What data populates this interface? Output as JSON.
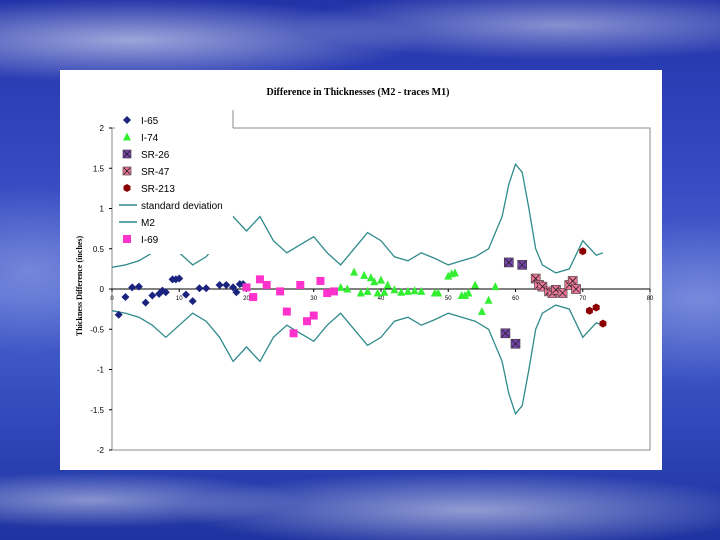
{
  "chart_data": {
    "type": "scatter",
    "title": "Difference in Thicknesses (M2 - traces M1)",
    "ylabel": "Thickness Difference (inches)",
    "xlabel": "",
    "xlim": [
      0,
      80
    ],
    "ylim": [
      -2,
      2
    ],
    "y_ticks": [
      "2",
      "1.5",
      "1",
      "0.5",
      "0",
      "-0.5",
      "-1",
      "-1.5",
      "-2"
    ],
    "x_ticks": [
      "0",
      "10",
      "20",
      "30",
      "40",
      "50",
      "60",
      "70",
      "80"
    ],
    "grid": false,
    "legend_position": "top-left",
    "series": [
      {
        "name": "I-65",
        "marker": "diamond",
        "color": "#1a237e",
        "points": [
          [
            1,
            -0.32
          ],
          [
            2,
            -0.1
          ],
          [
            3,
            0.02
          ],
          [
            4,
            0.03
          ],
          [
            5,
            -0.17
          ],
          [
            6,
            -0.08
          ],
          [
            7,
            -0.06
          ],
          [
            7.5,
            -0.02
          ],
          [
            8,
            -0.04
          ],
          [
            9,
            0.12
          ],
          [
            9.5,
            0.12
          ],
          [
            10,
            0.13
          ],
          [
            11,
            -0.07
          ],
          [
            12,
            -0.15
          ],
          [
            13,
            0.01
          ],
          [
            14,
            0.01
          ],
          [
            16,
            0.05
          ],
          [
            17,
            0.05
          ],
          [
            18,
            0.02
          ],
          [
            18.5,
            -0.04
          ],
          [
            19,
            0.06
          ],
          [
            19.5,
            0.06
          ]
        ]
      },
      {
        "name": "I-74",
        "marker": "triangle",
        "color": "#33ee33",
        "points": [
          [
            34,
            0.02
          ],
          [
            35,
            0.0
          ],
          [
            36,
            0.21
          ],
          [
            37,
            -0.05
          ],
          [
            37.5,
            0.17
          ],
          [
            38,
            -0.03
          ],
          [
            38.5,
            0.14
          ],
          [
            39,
            0.09
          ],
          [
            39.5,
            -0.05
          ],
          [
            40,
            0.11
          ],
          [
            40.5,
            -0.04
          ],
          [
            41,
            0.05
          ],
          [
            42,
            -0.01
          ],
          [
            43,
            -0.04
          ],
          [
            44,
            -0.03
          ],
          [
            45,
            -0.02
          ],
          [
            46,
            -0.03
          ],
          [
            48,
            -0.05
          ],
          [
            48.5,
            -0.05
          ],
          [
            50,
            0.16
          ],
          [
            50.5,
            0.19
          ],
          [
            51,
            0.2
          ],
          [
            52,
            -0.08
          ],
          [
            52.5,
            -0.08
          ],
          [
            53,
            -0.05
          ],
          [
            54,
            0.05
          ],
          [
            55,
            -0.28
          ],
          [
            56,
            -0.14
          ],
          [
            57,
            0.03
          ]
        ]
      },
      {
        "name": "SR-26",
        "marker": "boxed-x",
        "color": "#7744aa",
        "points": [
          [
            58.5,
            -0.55
          ],
          [
            59,
            0.33
          ],
          [
            60,
            -0.68
          ],
          [
            61,
            0.3
          ]
        ]
      },
      {
        "name": "SR-47",
        "marker": "boxed-x",
        "color": "#ee7799",
        "points": [
          [
            63,
            0.13
          ],
          [
            63.5,
            0.05
          ],
          [
            64,
            0.03
          ],
          [
            65,
            -0.03
          ],
          [
            65.5,
            -0.05
          ],
          [
            66,
            -0.01
          ],
          [
            67,
            -0.05
          ],
          [
            68,
            0.05
          ],
          [
            68.5,
            0.1
          ],
          [
            69,
            0.0
          ]
        ]
      },
      {
        "name": "SR-213",
        "marker": "hexagon",
        "color": "#8b0000",
        "points": [
          [
            70,
            0.47
          ],
          [
            71,
            -0.27
          ],
          [
            72,
            -0.23
          ],
          [
            73,
            -0.43
          ]
        ]
      },
      {
        "name": "standard deviation",
        "marker": "line",
        "color": "#2f8a8a",
        "points": [
          [
            0,
            0.27
          ],
          [
            2,
            0.3
          ],
          [
            4,
            0.35
          ],
          [
            6,
            0.45
          ],
          [
            8,
            0.6
          ],
          [
            10,
            0.45
          ],
          [
            12,
            0.3
          ],
          [
            14,
            0.4
          ],
          [
            16,
            0.6
          ],
          [
            18,
            0.9
          ],
          [
            20,
            0.72
          ],
          [
            22,
            0.9
          ],
          [
            24,
            0.6
          ],
          [
            26,
            0.45
          ],
          [
            28,
            0.55
          ],
          [
            30,
            0.65
          ],
          [
            32,
            0.45
          ],
          [
            34,
            0.3
          ],
          [
            36,
            0.5
          ],
          [
            38,
            0.7
          ],
          [
            40,
            0.6
          ],
          [
            42,
            0.4
          ],
          [
            44,
            0.35
          ],
          [
            46,
            0.45
          ],
          [
            48,
            0.38
          ],
          [
            50,
            0.3
          ],
          [
            52,
            0.35
          ],
          [
            54,
            0.4
          ],
          [
            56,
            0.5
          ],
          [
            58,
            0.9
          ],
          [
            59,
            1.3
          ],
          [
            60,
            1.55
          ],
          [
            61,
            1.45
          ],
          [
            62,
            1.0
          ],
          [
            63,
            0.5
          ],
          [
            64,
            0.3
          ],
          [
            66,
            0.2
          ],
          [
            68,
            0.25
          ],
          [
            70,
            0.6
          ],
          [
            72,
            0.42
          ],
          [
            73,
            0.45
          ]
        ]
      },
      {
        "name": "M2",
        "marker": "line",
        "color": "#2f8a8a",
        "points": [
          [
            0,
            -0.27
          ],
          [
            2,
            -0.3
          ],
          [
            4,
            -0.35
          ],
          [
            6,
            -0.45
          ],
          [
            8,
            -0.6
          ],
          [
            10,
            -0.45
          ],
          [
            12,
            -0.3
          ],
          [
            14,
            -0.4
          ],
          [
            16,
            -0.6
          ],
          [
            18,
            -0.9
          ],
          [
            20,
            -0.72
          ],
          [
            22,
            -0.9
          ],
          [
            24,
            -0.6
          ],
          [
            26,
            -0.45
          ],
          [
            28,
            -0.55
          ],
          [
            30,
            -0.65
          ],
          [
            32,
            -0.45
          ],
          [
            34,
            -0.3
          ],
          [
            36,
            -0.5
          ],
          [
            38,
            -0.7
          ],
          [
            40,
            -0.6
          ],
          [
            42,
            -0.4
          ],
          [
            44,
            -0.35
          ],
          [
            46,
            -0.45
          ],
          [
            48,
            -0.38
          ],
          [
            50,
            -0.3
          ],
          [
            52,
            -0.35
          ],
          [
            54,
            -0.4
          ],
          [
            56,
            -0.5
          ],
          [
            58,
            -0.9
          ],
          [
            59,
            -1.3
          ],
          [
            60,
            -1.55
          ],
          [
            61,
            -1.45
          ],
          [
            62,
            -1.0
          ],
          [
            63,
            -0.5
          ],
          [
            64,
            -0.3
          ],
          [
            66,
            -0.2
          ],
          [
            68,
            -0.25
          ],
          [
            70,
            -0.6
          ],
          [
            72,
            -0.42
          ],
          [
            73,
            -0.45
          ]
        ]
      },
      {
        "name": "I-69",
        "marker": "square",
        "color": "#ff33cc",
        "points": [
          [
            20,
            0.02
          ],
          [
            21,
            -0.1
          ],
          [
            22,
            0.12
          ],
          [
            23,
            0.05
          ],
          [
            25,
            -0.03
          ],
          [
            26,
            -0.28
          ],
          [
            27,
            -0.55
          ],
          [
            28,
            0.05
          ],
          [
            29,
            -0.4
          ],
          [
            30,
            -0.33
          ],
          [
            31,
            0.1
          ],
          [
            32,
            -0.05
          ],
          [
            33,
            -0.03
          ]
        ]
      }
    ]
  }
}
